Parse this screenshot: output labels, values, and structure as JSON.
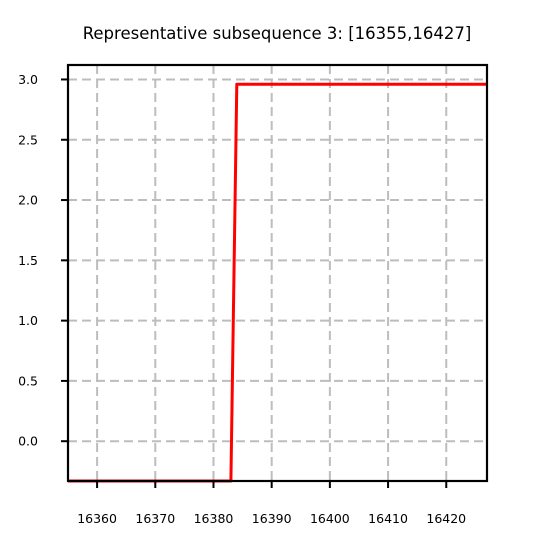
{
  "chart_data": {
    "type": "line",
    "title": "Representative subsequence 3: [16355,16427]",
    "xlabel": "",
    "ylabel": "",
    "xlim": [
      16355,
      16427
    ],
    "ylim": [
      -0.33,
      3.12
    ],
    "xticks": [
      16360,
      16370,
      16380,
      16390,
      16400,
      16410,
      16420
    ],
    "yticks": [
      0.0,
      0.5,
      1.0,
      1.5,
      2.0,
      2.5,
      3.0
    ],
    "xtick_labels": [
      "16360",
      "16370",
      "16380",
      "16390",
      "16400",
      "16410",
      "16420"
    ],
    "ytick_labels": [
      "0.0",
      "0.5",
      "1.0",
      "1.5",
      "2.0",
      "2.5",
      "3.0"
    ],
    "grid": true,
    "series": [
      {
        "color": "#ff0000",
        "x": [
          16355,
          16383,
          16384,
          16427
        ],
        "y": [
          -0.33,
          -0.33,
          2.96,
          2.96
        ]
      }
    ]
  }
}
